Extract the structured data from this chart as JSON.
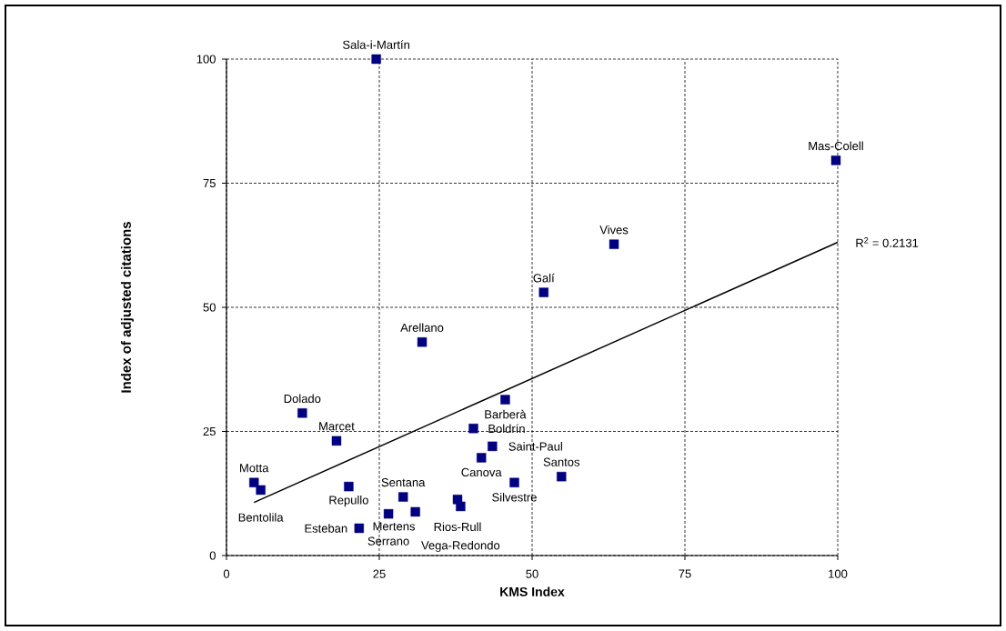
{
  "chart_data": {
    "type": "scatter",
    "xlabel": "KMS Index",
    "ylabel": "Index of adjusted citations",
    "xlim": [
      0,
      100
    ],
    "ylim": [
      0,
      100
    ],
    "xticks": [
      0,
      25,
      50,
      75,
      100
    ],
    "yticks": [
      0,
      25,
      50,
      75,
      100
    ],
    "grid": true,
    "series": [
      {
        "type": "scatter",
        "marker": "square",
        "color": "#000080",
        "x": [
          24.5,
          99.7,
          63.4,
          51.9,
          32.0,
          45.6,
          12.4,
          40.4,
          18.0,
          43.5,
          41.7,
          54.8,
          47.1,
          4.5,
          5.6,
          20.0,
          28.9,
          37.8,
          38.3,
          30.9,
          26.5,
          21.7
        ],
        "values": [
          100,
          79.6,
          62.7,
          53.0,
          43.0,
          31.4,
          28.7,
          25.6,
          23.1,
          22.0,
          19.7,
          15.9,
          14.7,
          14.7,
          13.2,
          13.9,
          11.8,
          11.3,
          9.9,
          8.8,
          8.4,
          5.5
        ]
      },
      {
        "type": "line",
        "color": "#000000",
        "x": [
          4.5,
          100
        ],
        "values": [
          10.7,
          63.1
        ]
      }
    ],
    "annotations": [
      {
        "text": "Sala-i-Martín",
        "x": 24.5,
        "y": 100
      },
      {
        "text": "Mas-Colell",
        "x": 99.7,
        "y": 79.6
      },
      {
        "text": "Vives",
        "x": 63.4,
        "y": 62.7
      },
      {
        "text": "Galí",
        "x": 51.9,
        "y": 53.0
      },
      {
        "text": "Arellano",
        "x": 32.0,
        "y": 43.0
      },
      {
        "text": "Barberà",
        "x": 45.6,
        "y": 31.4
      },
      {
        "text": "Dolado",
        "x": 12.4,
        "y": 28.7
      },
      {
        "text": "Boldrín",
        "x": 40.4,
        "y": 25.6
      },
      {
        "text": "Marcet",
        "x": 18.0,
        "y": 23.1
      },
      {
        "text": "Saint-Paul",
        "x": 43.5,
        "y": 22.0
      },
      {
        "text": "Canova",
        "x": 41.7,
        "y": 19.7
      },
      {
        "text": "Santos",
        "x": 54.8,
        "y": 15.9
      },
      {
        "text": "Silvestre",
        "x": 47.1,
        "y": 14.7
      },
      {
        "text": "Motta",
        "x": 4.5,
        "y": 14.7
      },
      {
        "text": "Bentolila",
        "x": 5.6,
        "y": 13.2
      },
      {
        "text": "Repullo",
        "x": 20.0,
        "y": 13.9
      },
      {
        "text": "Sentana",
        "x": 28.9,
        "y": 11.8
      },
      {
        "text": "Rios-Rull",
        "x": 37.8,
        "y": 11.3
      },
      {
        "text": "Vega-Redondo",
        "x": 38.3,
        "y": 9.9
      },
      {
        "text": "Mertens",
        "x": 30.9,
        "y": 8.8
      },
      {
        "text": "Serrano",
        "x": 26.5,
        "y": 8.4
      },
      {
        "text": "Esteban",
        "x": 21.7,
        "y": 5.5
      },
      {
        "text": "R$^{2}$ = 0.2131",
        "x": 100,
        "y": 63.1
      }
    ]
  }
}
